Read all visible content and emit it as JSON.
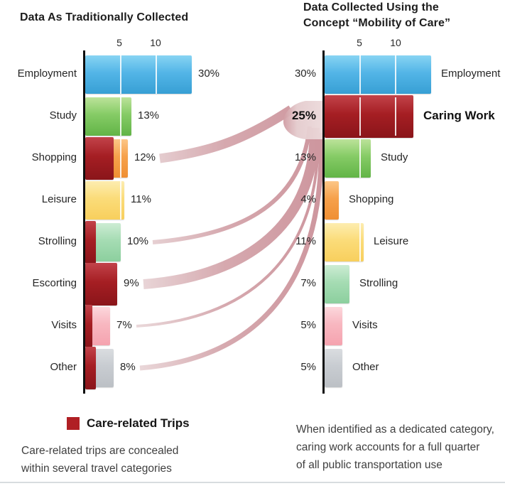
{
  "palette": {
    "blue": [
      "#87d4f3",
      "#53b5e7",
      "#379fd4"
    ],
    "green": [
      "#bce39a",
      "#85cb65",
      "#62b447"
    ],
    "care": [
      "#c2434a",
      "#a51e23",
      "#8a151a"
    ],
    "orange": [
      "#fcc687",
      "#f6a14b",
      "#ef8f33"
    ],
    "yellow": [
      "#fdedb0",
      "#fbdc79",
      "#f8cf5d"
    ],
    "mint": [
      "#cdecd4",
      "#a5dcb3",
      "#8ccf9e"
    ],
    "pink": [
      "#fcd7dc",
      "#f8b7c0",
      "#f5a3af"
    ],
    "gray": [
      "#dadde0",
      "#c8ccd1",
      "#bcc0c5"
    ],
    "axis": "#0e0e0e",
    "ribbon_stops": [
      "#e7d3d5",
      "#cf9aa1",
      "#c6868f"
    ],
    "band_stops": [
      "#cf9aa1",
      "#e4cbcd",
      "#ecdadb"
    ],
    "legend_red": "#b01f24"
  },
  "chart_data": [
    {
      "type": "bar",
      "orientation": "horizontal",
      "title": "Data As Traditionally Collected",
      "unit": "%",
      "xlabel_ticks": [
        "5",
        "10"
      ],
      "categories": [
        "Employment",
        "Study",
        "Shopping",
        "Leisure",
        "Strolling",
        "Escorting",
        "Visits",
        "Other"
      ],
      "values": [
        30,
        13,
        12,
        11,
        10,
        9,
        7,
        8
      ],
      "value_labels": [
        "30%",
        "13%",
        "12%",
        "11%",
        "10%",
        "9%",
        "7%",
        "8%"
      ],
      "care_within": [
        0,
        0,
        8,
        0,
        3,
        9,
        2,
        3
      ],
      "colors": [
        "blue",
        "green",
        "orange",
        "yellow",
        "mint",
        "care",
        "pink",
        "gray"
      ]
    },
    {
      "type": "bar",
      "orientation": "horizontal",
      "title": "Data Collected Using the Concept “Mobility of Care”",
      "title_line1": "Data Collected Using the",
      "title_line2": "Concept “Mobility of Care”",
      "unit": "%",
      "xlabel_ticks": [
        "5",
        "10"
      ],
      "categories": [
        "Employment",
        "Caring Work",
        "Study",
        "Shopping",
        "Leisure",
        "Strolling",
        "Visits",
        "Other"
      ],
      "values": [
        30,
        25,
        13,
        4,
        11,
        7,
        5,
        5
      ],
      "value_labels": [
        "30%",
        "25%",
        "13%",
        "4%",
        "11%",
        "7%",
        "5%",
        "5%"
      ],
      "care_within": [
        0,
        25,
        0,
        0,
        0,
        0,
        0,
        0
      ],
      "colors": [
        "blue",
        "care",
        "green",
        "orange",
        "yellow",
        "mint",
        "pink",
        "gray"
      ],
      "emphasis": "Caring Work"
    }
  ],
  "flows": {
    "target": "Caring Work",
    "total_pct": 25,
    "sources": [
      {
        "category": "Shopping",
        "pct": 8
      },
      {
        "category": "Strolling",
        "pct": 3
      },
      {
        "category": "Escorting",
        "pct": 9
      },
      {
        "category": "Visits",
        "pct": 2
      },
      {
        "category": "Other",
        "pct": 3
      }
    ]
  },
  "legend": {
    "label": "Care-related Trips"
  },
  "left_caption": {
    "line1": "Care-related trips are concealed",
    "line2": "within several travel categories"
  },
  "right_caption": {
    "line1": "When identified as a dedicated category,",
    "line2": "caring work accounts for a full quarter",
    "line3": "of all public transportation use"
  }
}
